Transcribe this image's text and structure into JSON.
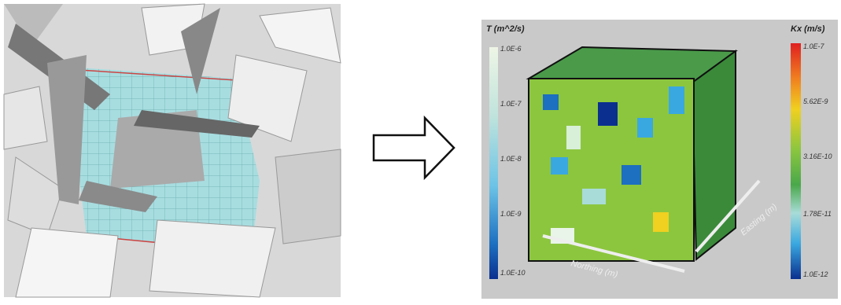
{
  "right_panel": {
    "left_colorbar": {
      "title": "T (m^2/s)",
      "labels": [
        "1.0E-6",
        "1.0E-7",
        "1.0E-8",
        "1.0E-9",
        "1.0E-10"
      ]
    },
    "right_colorbar": {
      "title": "Kx (m/s)",
      "labels": [
        "1.0E-7",
        "5.62E-9",
        "3.16E-10",
        "1.78E-11",
        "1.0E-12"
      ]
    },
    "x_axis_label": "Northing (m)",
    "y_axis_label": "Easting (m)"
  }
}
